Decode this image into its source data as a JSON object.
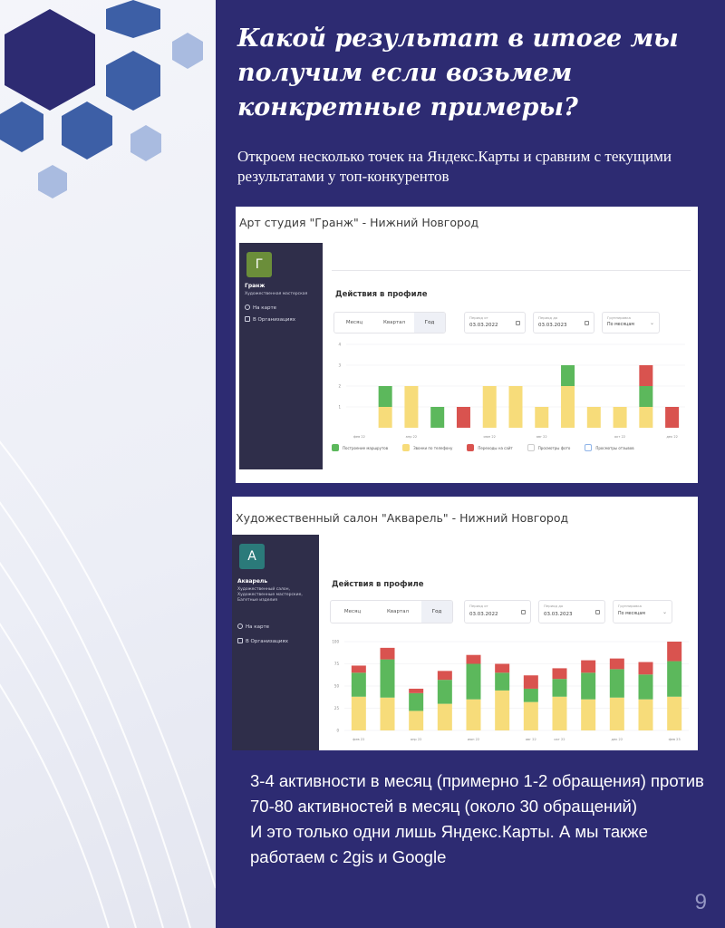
{
  "slide": {
    "headline": "Какой результат в итоге мы получим если возьмем конкретные примеры?",
    "subline": "Откроем несколько точек на Яндекс.Карты и сравним с текущими результатами у топ-конкурентов",
    "bottom_text_1": "3-4 активности в месяц (примерно 1-2 обращения) против 70-80 активностей в месяц (около 30 обращений)",
    "bottom_text_2": "И это только одни лишь Яндекс.Карты. А мы также работаем с 2gis и Google",
    "page_number": "9"
  },
  "colors": {
    "background": "#2d2b72",
    "green": "#5cb85c",
    "yellow": "#f7dc7a",
    "red": "#d9534f"
  },
  "screenshot1": {
    "title": "Арт студия \"Гранж\" - Нижний Новгород",
    "avatar_letter": "Г",
    "org_name": "Гранж",
    "org_desc": "Художественная мастерская",
    "link_map": "На карте",
    "link_org": "В Организациях",
    "section_title": "Действия в профиле",
    "tabs": [
      "Месяц",
      "Квартал",
      "Год"
    ],
    "active_tab": 2,
    "period_from_label": "Период от",
    "period_from": "03.03.2022",
    "period_to_label": "Период до",
    "period_to": "03.03.2023",
    "grouping_label": "Группировка",
    "grouping": "По месяцам",
    "legend": [
      "Построение маршрутов",
      "Звонки по телефону",
      "Переходы на сайт",
      "Просмотры фото",
      "Просмотры отзывов"
    ]
  },
  "screenshot2": {
    "title": "Художественный салон \"Акварель\" - Нижний Новгород",
    "avatar_letter": "А",
    "org_name": "Акварель",
    "org_desc": "Художественный салон, Художественные мастерские, Багетные изделия",
    "link_map": "На карте",
    "link_org": "В Организациях",
    "section_title": "Действия в профиле",
    "tabs": [
      "Месяц",
      "Квартал",
      "Год"
    ],
    "active_tab": 2,
    "period_from_label": "Период от",
    "period_from": "03.03.2022",
    "period_to_label": "Период до",
    "period_to": "03.03.2023",
    "grouping_label": "Группировка",
    "grouping": "По месяцам"
  },
  "chart_data": [
    {
      "type": "bar",
      "stacked": true,
      "x_tick_labels": [
        "фев 22",
        "апр 22",
        "июн 22",
        "авг 22",
        "окт 22",
        "дек 22"
      ],
      "y_ticks": [
        1,
        2,
        3,
        4
      ],
      "ylim": [
        0,
        4
      ],
      "series": [
        {
          "name": "Звонки по телефону",
          "color": "#f7dc7a",
          "values": [
            0,
            1,
            2,
            0,
            0,
            2,
            2,
            1,
            2,
            1,
            1,
            1,
            0
          ]
        },
        {
          "name": "Построение маршрутов",
          "color": "#5cb85c",
          "values": [
            0,
            1,
            0,
            1,
            0,
            0,
            0,
            0,
            1,
            0,
            0,
            1,
            0
          ]
        },
        {
          "name": "Переходы на сайт",
          "color": "#d9534f",
          "values": [
            0,
            0,
            0,
            0,
            1,
            0,
            0,
            0,
            0,
            0,
            0,
            1,
            1
          ]
        }
      ]
    },
    {
      "type": "bar",
      "stacked": true,
      "x_tick_labels": [
        "фев 22",
        "апр 22",
        "июн 22",
        "авг 22",
        "окт 22",
        "дек 22",
        "фев 23"
      ],
      "y_ticks": [
        0,
        25,
        50,
        75,
        100
      ],
      "ylim": [
        0,
        100
      ],
      "series": [
        {
          "name": "Звонки по телефону",
          "color": "#f7dc7a",
          "values": [
            38,
            37,
            22,
            30,
            35,
            45,
            32,
            38,
            35,
            37,
            35,
            38
          ]
        },
        {
          "name": "Построение маршрутов",
          "color": "#5cb85c",
          "values": [
            27,
            43,
            20,
            27,
            40,
            20,
            15,
            20,
            30,
            32,
            28,
            40
          ]
        },
        {
          "name": "Переходы на сайт",
          "color": "#d9534f",
          "values": [
            8,
            13,
            5,
            10,
            10,
            10,
            15,
            12,
            14,
            12,
            14,
            22
          ]
        }
      ]
    }
  ]
}
